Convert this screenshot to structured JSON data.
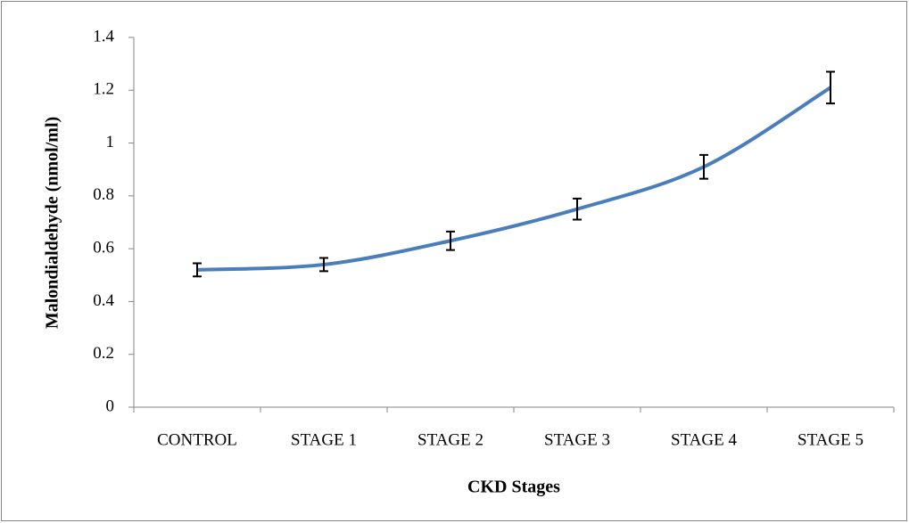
{
  "chart_data": {
    "type": "line",
    "x_label": "CKD Stages",
    "y_label": "Malondialdehyde (nmol/ml)",
    "categories": [
      "CONTROL",
      "STAGE 1",
      "STAGE 2",
      "STAGE 3",
      "STAGE 4",
      "STAGE 5"
    ],
    "values": [
      0.52,
      0.54,
      0.63,
      0.75,
      0.91,
      1.21
    ],
    "errors": [
      0.025,
      0.025,
      0.035,
      0.04,
      0.045,
      0.06
    ],
    "color": "#4a7ebb",
    "ylim": [
      0,
      1.4
    ],
    "yticks": [
      0,
      0.2,
      0.4,
      0.6,
      0.8,
      1,
      1.2,
      1.4
    ],
    "grid": false
  }
}
